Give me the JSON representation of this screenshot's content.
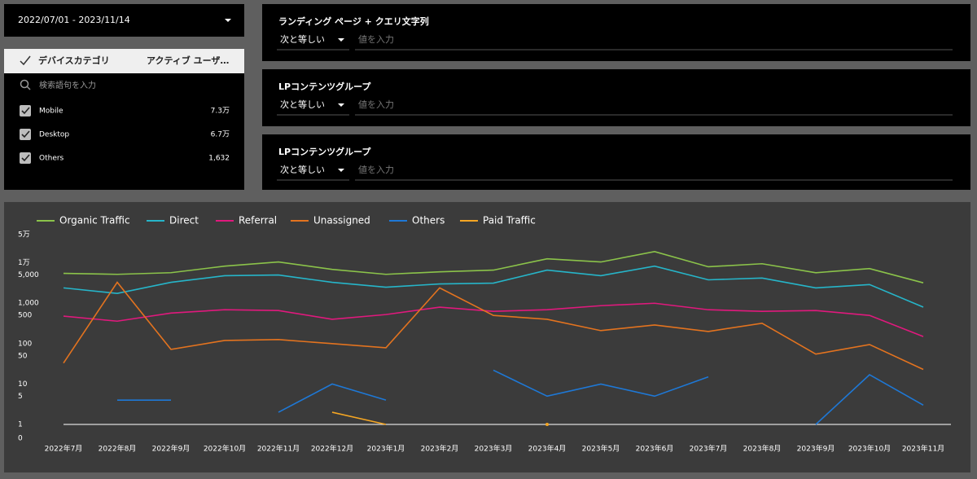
{
  "date_range": {
    "label": "2022/07/01 - 2023/11/14"
  },
  "device_table": {
    "columns": [
      "デバイスカテゴリ",
      "アクティブ ユーザ…"
    ],
    "search_placeholder": "検索語句を入力",
    "rows": [
      [
        "Mobile",
        "7.3万"
      ],
      [
        "Desktop",
        "6.7万"
      ],
      [
        "Others",
        "1,632"
      ]
    ]
  },
  "filters": [
    {
      "title": "ランディング ページ + クエリ文字列",
      "operator": "次と等しい",
      "placeholder": "値を入力"
    },
    {
      "title": "LPコンテンツグループ",
      "operator": "次と等しい",
      "placeholder": "値を入力"
    },
    {
      "title": "LPコンテンツグループ",
      "operator": "次と等しい",
      "placeholder": "値を入力"
    }
  ],
  "chart_data": {
    "type": "line",
    "yscale": "log",
    "legend": "top-left",
    "categories": [
      "2022年7月",
      "2022年8月",
      "2022年9月",
      "2022年10月",
      "2022年11月",
      "2022年12月",
      "2023年1月",
      "2023年2月",
      "2023年3月",
      "2023年4月",
      "2023年5月",
      "2023年6月",
      "2023年7月",
      "2023年8月",
      "2023年9月",
      "2023年10月",
      "2023年11月"
    ],
    "ylim": [
      0,
      50000
    ],
    "yticks": [
      0,
      1,
      5,
      10,
      50,
      100,
      500,
      {
        "value": 1000,
        "label": "1,000"
      },
      {
        "value": 5000,
        "label": "5,000"
      },
      {
        "value": 10000,
        "label": "1万"
      },
      {
        "value": 50000,
        "label": "5万"
      }
    ],
    "series": [
      {
        "name": "Organic Traffic",
        "color": "#8bc34a",
        "values": [
          5500,
          5200,
          5700,
          8300,
          10500,
          6900,
          5200,
          6000,
          6600,
          12600,
          10500,
          19000,
          8000,
          9500,
          5700,
          7200,
          3200
        ]
      },
      {
        "name": "Direct",
        "color": "#26b5c9",
        "values": [
          2400,
          1750,
          3300,
          4800,
          5000,
          3300,
          2500,
          3000,
          3150,
          6600,
          4800,
          8300,
          3800,
          4200,
          2400,
          2900,
          800
        ]
      },
      {
        "name": "Referral",
        "color": "#e0197d",
        "values": [
          480,
          360,
          570,
          690,
          660,
          400,
          525,
          800,
          630,
          690,
          870,
          1000,
          690,
          630,
          660,
          500,
          150
        ]
      },
      {
        "name": "Unassigned",
        "color": "#e3731f",
        "values": [
          33,
          3300,
          72,
          120,
          126,
          100,
          79,
          2400,
          500,
          400,
          210,
          290,
          200,
          320,
          55,
          95,
          23
        ]
      },
      {
        "name": "Others",
        "color": "#1e78d6",
        "values": [
          null,
          4,
          4,
          null,
          2,
          10,
          4,
          null,
          22,
          5,
          10,
          5,
          15,
          null,
          1,
          17,
          3
        ]
      },
      {
        "name": "Paid Traffic",
        "color": "#f5a623",
        "values": [
          null,
          null,
          null,
          null,
          null,
          2,
          1,
          null,
          null,
          1,
          null,
          null,
          null,
          null,
          null,
          null,
          null
        ]
      }
    ]
  }
}
